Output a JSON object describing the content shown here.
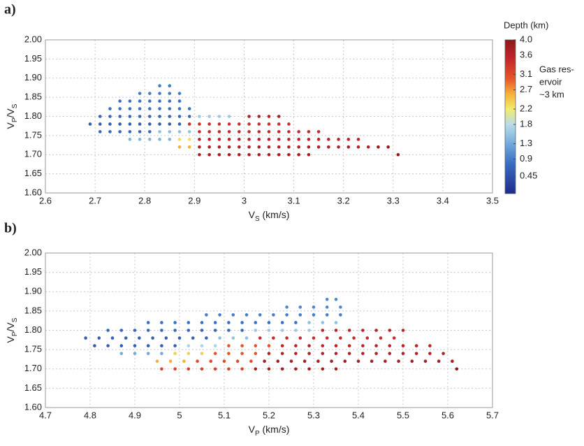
{
  "chart_data": [
    {
      "type": "scatter",
      "panel_label": "a)",
      "xlabel": [
        "V",
        "S",
        " (km/s)"
      ],
      "ylabel": [
        "V",
        "P",
        "/V",
        "S"
      ],
      "xlim": [
        2.6,
        3.5
      ],
      "ylim": [
        1.6,
        2.0
      ],
      "xticks": [
        {
          "value": 2.6,
          "label": "2.6"
        },
        2.7,
        2.8,
        2.9,
        3,
        3.1,
        3.2,
        3.3,
        3.4,
        3.5
      ],
      "yticks": [
        {
          "value": 1.6,
          "label": "1.60"
        },
        {
          "value": 1.65,
          "label": "1.65"
        },
        {
          "value": 1.7,
          "label": "1.70"
        },
        {
          "value": 1.75,
          "label": "1.75"
        },
        {
          "value": 1.8,
          "label": "1.80"
        },
        {
          "value": 1.85,
          "label": "1.85"
        },
        {
          "value": 1.9,
          "label": "1.90"
        },
        {
          "value": 1.95,
          "label": "1.95"
        },
        {
          "value": 2.0,
          "label": "2.00"
        }
      ],
      "grid": true,
      "colorbar": {
        "label": "Depth (km)",
        "clim": [
          0,
          4
        ],
        "ticks": [
          0.45,
          0.9,
          1.3,
          1.8,
          2.2,
          2.7,
          3.1,
          3.6,
          {
            "value": 4,
            "label": "4.0"
          }
        ]
      },
      "annotations": [
        "Gas res-",
        "ervoir",
        "~3 km"
      ],
      "points": [
        {
          "y": 1.88,
          "depth": 0.9,
          "x": [
            2.83,
            2.85
          ]
        },
        {
          "y": 1.86,
          "depth": 0.9,
          "x": [
            2.79,
            2.81,
            2.83,
            2.85,
            2.87
          ]
        },
        {
          "y": 1.84,
          "depth": 0.8,
          "x": [
            2.75,
            2.77,
            2.79,
            2.81,
            2.83,
            2.85,
            2.87
          ]
        },
        {
          "y": 1.82,
          "depth": 0.8,
          "x": [
            2.73,
            2.75,
            2.77,
            2.79,
            2.81,
            2.83,
            2.85,
            2.87,
            2.89
          ]
        },
        {
          "y": 1.8,
          "depth": 0.7,
          "x": [
            2.71,
            2.73,
            2.75,
            2.77,
            2.79,
            2.81,
            2.83,
            2.85,
            2.87,
            2.89
          ]
        },
        {
          "y": 1.8,
          "depth": 1.6,
          "x": [
            2.91,
            2.93,
            2.95,
            2.97
          ]
        },
        {
          "y": 1.8,
          "depth": 3.7,
          "x": [
            3.01,
            3.03,
            3.05,
            3.07
          ]
        },
        {
          "y": 1.78,
          "depth": 0.6,
          "x": [
            2.69,
            2.71,
            2.73,
            2.75,
            2.77,
            2.79,
            2.81,
            2.83,
            2.85,
            2.87
          ]
        },
        {
          "y": 1.78,
          "depth": 3.4,
          "x": [
            2.89,
            2.91,
            2.93,
            2.95,
            2.97,
            2.99,
            3.01,
            3.03,
            3.05,
            3.07,
            3.09
          ]
        },
        {
          "y": 1.76,
          "depth": 0.7,
          "x": [
            2.71,
            2.73,
            2.75,
            2.77,
            2.79,
            2.81
          ]
        },
        {
          "y": 1.76,
          "depth": 1.5,
          "x": [
            2.83,
            2.85,
            2.87,
            2.89
          ]
        },
        {
          "y": 1.76,
          "depth": 3.5,
          "x": [
            2.91,
            2.93,
            2.95,
            2.97,
            2.99,
            3.01,
            3.03,
            3.05,
            3.07,
            3.09,
            3.11,
            3.13,
            3.15
          ]
        },
        {
          "y": 1.74,
          "depth": 1.4,
          "x": [
            2.77,
            2.79,
            2.81,
            2.83,
            2.85
          ]
        },
        {
          "y": 1.74,
          "depth": 2.3,
          "x": [
            2.87,
            2.89
          ]
        },
        {
          "y": 1.74,
          "depth": 3.6,
          "x": [
            2.91,
            2.93,
            2.95,
            2.97,
            2.99,
            3.01,
            3.03,
            3.05,
            3.07,
            3.09,
            3.11,
            3.13,
            3.15,
            3.17,
            3.19,
            3.21,
            3.23
          ]
        },
        {
          "y": 1.72,
          "depth": 2.6,
          "x": [
            2.87,
            2.89
          ]
        },
        {
          "y": 1.72,
          "depth": 3.7,
          "x": [
            2.91,
            2.93,
            2.95,
            2.97,
            2.99,
            3.01,
            3.03,
            3.05,
            3.07,
            3.09,
            3.11,
            3.13,
            3.15,
            3.17,
            3.19,
            3.21,
            3.23,
            3.25
          ]
        },
        {
          "y": 1.72,
          "depth": 3.9,
          "x": [
            3.27,
            3.29
          ]
        },
        {
          "y": 1.7,
          "depth": 3.8,
          "x": [
            2.91,
            2.93,
            2.95,
            2.97,
            2.99,
            3.01,
            3.03,
            3.05,
            3.07,
            3.09,
            3.11,
            3.13
          ]
        },
        {
          "y": 1.7,
          "depth": 4.0,
          "x": [
            3.31
          ]
        }
      ]
    },
    {
      "type": "scatter",
      "panel_label": "b)",
      "xlabel": [
        "V",
        "P",
        " (km/s)"
      ],
      "ylabel": [
        "V",
        "P",
        "/V",
        "S"
      ],
      "xlim": [
        4.7,
        5.7
      ],
      "ylim": [
        1.6,
        2.0
      ],
      "xticks": [
        4.7,
        4.8,
        4.9,
        5,
        5.1,
        5.2,
        5.3,
        5.4,
        5.5,
        5.6,
        5.7
      ],
      "yticks": [
        {
          "value": 1.6,
          "label": "1.60"
        },
        {
          "value": 1.65,
          "label": "1.65"
        },
        {
          "value": 1.7,
          "label": "1.70"
        },
        {
          "value": 1.75,
          "label": "1.75"
        },
        {
          "value": 1.8,
          "label": "1.80"
        },
        {
          "value": 1.85,
          "label": "1.85"
        },
        {
          "value": 1.9,
          "label": "1.90"
        },
        {
          "value": 1.95,
          "label": "1.95"
        },
        {
          "value": 2.0,
          "label": "2.00"
        }
      ],
      "grid": true,
      "points": [
        {
          "y": 1.88,
          "depth": 1.0,
          "x": [
            5.33,
            5.35
          ]
        },
        {
          "y": 1.86,
          "depth": 1.0,
          "x": [
            5.24,
            5.27,
            5.3,
            5.33,
            5.36
          ]
        },
        {
          "y": 1.84,
          "depth": 0.9,
          "x": [
            5.06,
            5.09,
            5.12,
            5.15,
            5.18,
            5.21,
            5.24,
            5.27,
            5.3,
            5.33,
            5.36
          ]
        },
        {
          "y": 1.82,
          "depth": 0.8,
          "x": [
            4.93,
            4.96,
            4.99,
            5.02,
            5.05,
            5.08,
            5.11,
            5.14,
            5.17,
            5.2,
            5.23,
            5.26
          ]
        },
        {
          "y": 1.82,
          "depth": 1.5,
          "x": [
            5.29,
            5.32,
            5.35
          ]
        },
        {
          "y": 1.8,
          "depth": 0.7,
          "x": [
            4.84,
            4.87,
            4.9,
            4.93,
            4.96,
            4.99,
            5.02,
            5.05,
            5.08,
            5.11,
            5.14
          ]
        },
        {
          "y": 1.8,
          "depth": 1.6,
          "x": [
            5.17,
            5.2,
            5.23,
            5.26,
            5.29
          ]
        },
        {
          "y": 1.8,
          "depth": 3.6,
          "x": [
            5.32,
            5.35,
            5.38,
            5.41,
            5.44,
            5.47,
            5.5
          ]
        },
        {
          "y": 1.78,
          "depth": 0.6,
          "x": [
            4.79,
            4.82,
            4.85,
            4.88,
            4.91,
            4.94,
            4.97,
            5.0,
            5.03,
            5.06
          ]
        },
        {
          "y": 1.78,
          "depth": 1.5,
          "x": [
            5.09,
            5.12,
            5.15
          ]
        },
        {
          "y": 1.78,
          "depth": 3.5,
          "x": [
            5.18,
            5.21,
            5.24,
            5.27,
            5.3,
            5.33,
            5.36,
            5.39,
            5.42,
            5.45,
            5.48
          ]
        },
        {
          "y": 1.76,
          "depth": 0.6,
          "x": [
            4.81,
            4.84,
            4.87,
            4.9,
            4.93,
            4.96,
            4.99
          ]
        },
        {
          "y": 1.76,
          "depth": 1.7,
          "x": [
            5.02,
            5.05,
            5.08
          ]
        },
        {
          "y": 1.76,
          "depth": 3.0,
          "x": [
            5.11,
            5.14,
            5.17,
            5.2
          ]
        },
        {
          "y": 1.76,
          "depth": 3.6,
          "x": [
            5.23,
            5.26,
            5.29,
            5.32,
            5.35,
            5.38,
            5.41,
            5.44,
            5.47,
            5.5,
            5.53,
            5.56
          ]
        },
        {
          "y": 1.74,
          "depth": 1.3,
          "x": [
            4.87,
            4.9,
            4.93,
            4.96
          ]
        },
        {
          "y": 1.74,
          "depth": 2.4,
          "x": [
            4.99,
            5.02,
            5.05
          ]
        },
        {
          "y": 1.74,
          "depth": 3.0,
          "x": [
            5.08,
            5.11,
            5.14,
            5.17
          ]
        },
        {
          "y": 1.74,
          "depth": 3.7,
          "x": [
            5.2,
            5.23,
            5.26,
            5.29,
            5.32,
            5.35,
            5.38,
            5.41,
            5.44,
            5.47,
            5.5,
            5.53,
            5.56,
            5.59
          ]
        },
        {
          "y": 1.72,
          "depth": 2.6,
          "x": [
            4.95,
            4.98,
            5.01
          ]
        },
        {
          "y": 1.72,
          "depth": 3.1,
          "x": [
            5.04,
            5.07,
            5.1,
            5.13,
            5.16
          ]
        },
        {
          "y": 1.72,
          "depth": 3.8,
          "x": [
            5.19,
            5.22,
            5.25,
            5.28,
            5.31,
            5.34,
            5.37,
            5.4,
            5.43,
            5.46,
            5.49,
            5.52,
            5.55,
            5.58,
            5.61
          ]
        },
        {
          "y": 1.7,
          "depth": 3.2,
          "x": [
            4.96,
            4.99,
            5.02,
            5.05,
            5.08,
            5.11,
            5.14
          ]
        },
        {
          "y": 1.7,
          "depth": 3.8,
          "x": [
            5.17,
            5.2,
            5.23,
            5.26,
            5.29,
            5.32,
            5.35
          ]
        },
        {
          "y": 1.7,
          "depth": 4.0,
          "x": [
            5.62
          ]
        }
      ]
    }
  ]
}
